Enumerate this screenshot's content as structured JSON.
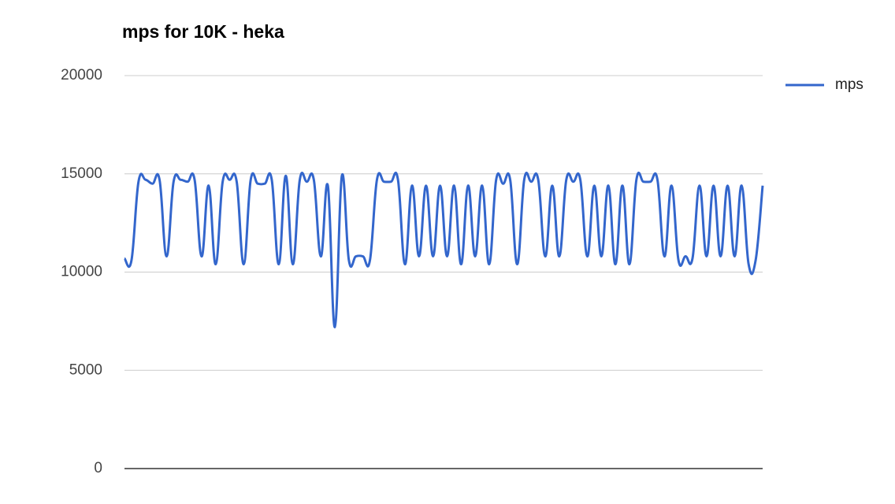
{
  "chart_data": {
    "type": "line",
    "title": "mps for 10K - heka",
    "categories": [
      null,
      null,
      null,
      null,
      null,
      null,
      null,
      null,
      null,
      null,
      null,
      null,
      null,
      null,
      null,
      null,
      null,
      null,
      null,
      null,
      null,
      null,
      null,
      null,
      null,
      null,
      null,
      null,
      null,
      null,
      null,
      null,
      null,
      null,
      null,
      null,
      null,
      null,
      null,
      null,
      null,
      null,
      null,
      null,
      null,
      null,
      null,
      null,
      null,
      null,
      null,
      null,
      null,
      null,
      null,
      null,
      null,
      null,
      null,
      null,
      null,
      null,
      null,
      null,
      null,
      null,
      null,
      null,
      null,
      null,
      null,
      null,
      null,
      null,
      null,
      null,
      null,
      null,
      null,
      null,
      null,
      null,
      null,
      null,
      null,
      null,
      null,
      null,
      null,
      null,
      null,
      null
    ],
    "series": [
      {
        "name": "mps",
        "color": "#3366cc",
        "values": [
          10700,
          10600,
          14600,
          14700,
          14500,
          14700,
          10800,
          14600,
          14700,
          14600,
          14700,
          10800,
          14400,
          10400,
          14600,
          14700,
          14600,
          10400,
          14700,
          14500,
          14500,
          14700,
          10400,
          14900,
          10400,
          14700,
          14600,
          14700,
          10800,
          14400,
          7200,
          14900,
          10600,
          10800,
          10800,
          10600,
          14700,
          14600,
          14600,
          14700,
          10400,
          14400,
          10800,
          14400,
          10800,
          14400,
          10800,
          14400,
          10400,
          14400,
          10800,
          14400,
          10400,
          14700,
          14500,
          14700,
          10400,
          14700,
          14600,
          14700,
          10800,
          14400,
          10800,
          14700,
          14600,
          14700,
          10800,
          14400,
          10800,
          14400,
          10400,
          14400,
          10400,
          14700,
          14600,
          14600,
          14700,
          10800,
          14400,
          10600,
          10800,
          10700,
          14400,
          10800,
          14400,
          10800,
          14400,
          10800,
          14400,
          10400,
          10600,
          14400
        ]
      }
    ],
    "ylim": [
      0,
      20000
    ],
    "yticks": [
      0,
      5000,
      10000,
      15000,
      20000
    ],
    "grid": true,
    "legend": "right"
  }
}
